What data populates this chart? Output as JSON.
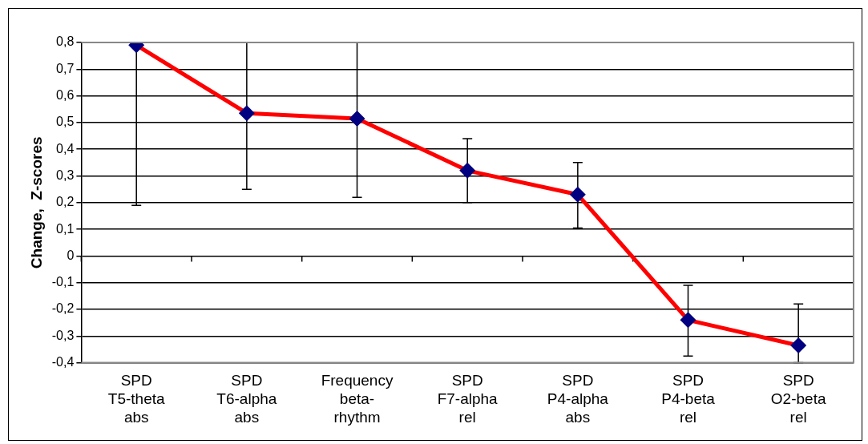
{
  "chart_data": {
    "type": "line",
    "ylabel": "Change,  Z-scores",
    "categories": [
      "SPD\nT5-theta\nabs",
      "SPD\nT6-alpha\nabs",
      "Frequency\nbeta-\nrhythm",
      "SPD\nF7-alpha\nrel",
      "SPD\nP4-alpha\nabs",
      "SPD\nP4-beta\nrel",
      "SPD\nO2-beta\nrel"
    ],
    "series": [
      {
        "color": "#ff0000",
        "colors": [
          "#000080",
          "#000080",
          "#000080",
          "#000080",
          "#000080",
          "#000080",
          "#000080"
        ],
        "values": [
          0.79,
          0.535,
          0.515,
          0.32,
          0.23,
          -0.24,
          -0.335
        ],
        "errors": [
          [
            0.19,
            0.8
          ],
          [
            0.25,
            0.8
          ],
          [
            0.22,
            0.8
          ],
          [
            0.2,
            0.44
          ],
          [
            0.105,
            0.35
          ],
          [
            -0.375,
            -0.11
          ],
          [
            -0.4,
            -0.18
          ]
        ]
      }
    ],
    "marker": "diamond",
    "ylim": [
      -0.4,
      0.8
    ],
    "yticks": [
      {
        "value": -0.4,
        "label": "-0,4"
      },
      {
        "value": -0.3,
        "label": "-0,3"
      },
      {
        "value": -0.2,
        "label": "-0,2"
      },
      {
        "value": -0.1,
        "label": "-0,1"
      },
      0,
      {
        "value": 0.1,
        "label": "0,1"
      },
      {
        "value": 0.2,
        "label": "0,2"
      },
      {
        "value": 0.3,
        "label": "0,3"
      },
      {
        "value": 0.4,
        "label": "0,4"
      },
      {
        "value": 0.5,
        "label": "0,5"
      },
      {
        "value": 0.6,
        "label": "0,6"
      },
      {
        "value": 0.7,
        "label": "0,7"
      },
      {
        "value": 0.8,
        "label": "0,8"
      }
    ],
    "grid": "y",
    "legend": false,
    "line_style": "solid"
  }
}
